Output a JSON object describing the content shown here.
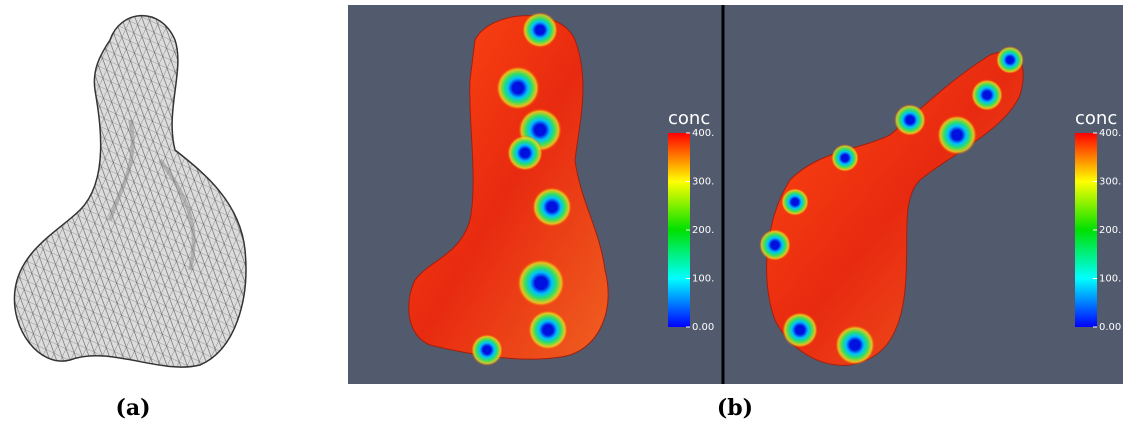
{
  "panels": [
    {
      "caption": "(a)"
    },
    {
      "caption": "(b)",
      "views": [
        {
          "colorbar": {
            "title": "conc",
            "ticks": [
              "400.",
              "300.",
              "200.",
              "100.",
              "0.00"
            ]
          }
        },
        {
          "colorbar": {
            "title": "conc",
            "ticks": [
              "400.",
              "300.",
              "200.",
              "100.",
              "0.00"
            ]
          }
        }
      ]
    }
  ]
}
